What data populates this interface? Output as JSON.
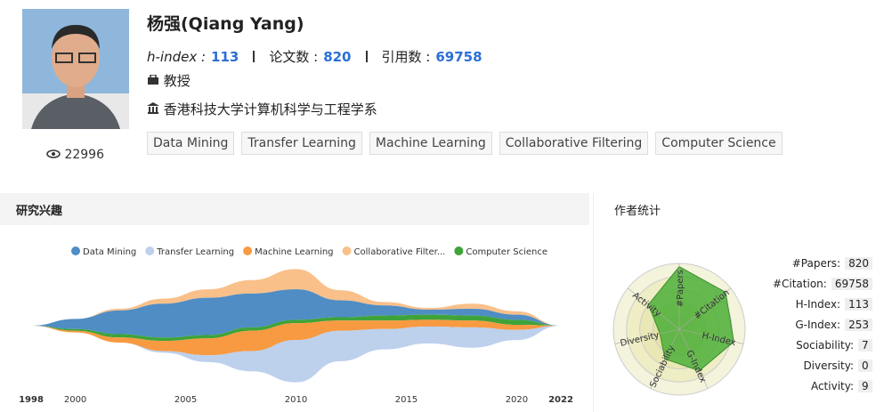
{
  "profile": {
    "name": "杨强(Qiang Yang)",
    "hindex_label": "h-index :",
    "hindex": 113,
    "papers_label": "论文数 :",
    "papers": 820,
    "citations_label": "引用数 :",
    "citations": 69758,
    "position": "教授",
    "affiliation": "香港科技大学计算机科学与工程学系",
    "views": 22996,
    "tags": [
      "Data Mining",
      "Transfer Learning",
      "Machine Learning",
      "Collaborative Filtering",
      "Computer Science"
    ]
  },
  "sections": {
    "interests": "研究兴趣",
    "stats": "作者统计"
  },
  "chart_data": [
    {
      "type": "streamgraph",
      "x": [
        1998,
        2000,
        2002,
        2004,
        2006,
        2008,
        2010,
        2012,
        2014,
        2016,
        2018,
        2020,
        2022
      ],
      "xlim": [
        1998,
        2022
      ],
      "xticks": [
        1998,
        2000,
        2005,
        2010,
        2015,
        2020,
        2022
      ],
      "series": [
        {
          "name": "Data Mining",
          "color": "#4f8dc4",
          "values": [
            0,
            6,
            14,
            20,
            22,
            20,
            18,
            10,
            6,
            3,
            4,
            3,
            0
          ]
        },
        {
          "name": "Transfer Learning",
          "color": "#bdd0ec",
          "values": [
            0,
            0,
            0,
            1,
            4,
            12,
            25,
            18,
            12,
            10,
            12,
            6,
            0
          ]
        },
        {
          "name": "Machine Learning",
          "color": "#f79a41",
          "values": [
            0,
            1,
            3,
            6,
            10,
            12,
            10,
            6,
            5,
            4,
            4,
            3,
            0
          ]
        },
        {
          "name": "Collaborative Filter...",
          "color": "#f9c08a",
          "values": [
            0,
            0,
            1,
            3,
            5,
            8,
            12,
            6,
            2,
            1,
            3,
            2,
            0
          ]
        },
        {
          "name": "Computer Science",
          "color": "#3fa33a",
          "values": [
            0,
            1,
            2,
            2,
            2,
            2,
            2,
            2,
            3,
            3,
            3,
            3,
            0
          ]
        }
      ]
    },
    {
      "type": "radar",
      "axes": [
        "#Papers",
        "#Citation",
        "H-Index",
        "G-Index",
        "Sociability",
        "Diversity",
        "Activity"
      ],
      "values": [
        0.95,
        0.9,
        0.85,
        0.7,
        0.5,
        0.3,
        0.6
      ],
      "ylim": [
        0,
        1
      ],
      "color": "#4caf3a"
    }
  ],
  "stats": [
    {
      "label": "#Papers:",
      "value": 820
    },
    {
      "label": "#Citation:",
      "value": 69758
    },
    {
      "label": "H-Index:",
      "value": 113
    },
    {
      "label": "G-Index:",
      "value": 253
    },
    {
      "label": "Sociability:",
      "value": 7
    },
    {
      "label": "Diversity:",
      "value": 0
    },
    {
      "label": "Activity:",
      "value": 9
    }
  ]
}
